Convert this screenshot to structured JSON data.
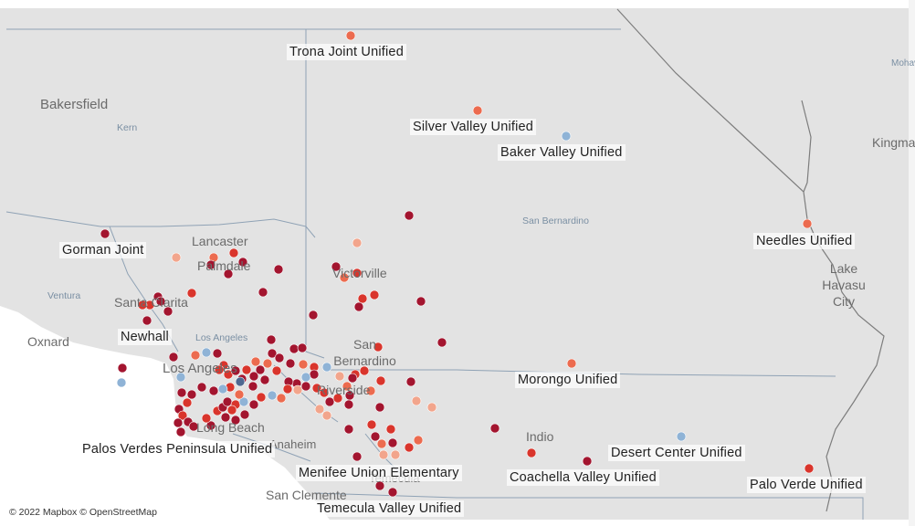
{
  "map": {
    "attribution": "© 2022 Mapbox © OpenStreetMap",
    "colors": {
      "land": "#e3e3e3",
      "water": "#ffffff",
      "county_border": "#8fa2b5",
      "state_border": "#7d7d7d",
      "dot_dark": "#a3152f",
      "dot_red": "#d9352c",
      "dot_orange": "#ec6b4f",
      "dot_light": "#f2a58c",
      "dot_blue": "#8fb3d6",
      "dot_navy": "#4d6891"
    },
    "district_labels": [
      "Trona Joint Unified",
      "Silver Valley Unified",
      "Baker Valley Unified",
      "Gorman Joint",
      "Needles Unified",
      "Newhall",
      "Morongo Unified",
      "Desert Center Unified",
      "Palos Verdes Peninsula Unified",
      "Coachella Valley Unified",
      "Menifee Union Elementary",
      "Palo Verde Unified",
      "Temecula Valley Unified"
    ],
    "city_labels": [
      "Bakersfield",
      "Lancaster",
      "Palmdale",
      "Victorville",
      "Santa Clarita",
      "Oxnard",
      "Los Angeles",
      "San Bernardino",
      "Riverside",
      "Long Beach",
      "Indio",
      "Lake Havasu City",
      "San Clemente",
      "Temecula",
      "Kingman",
      "Mohave",
      "Anaheim"
    ],
    "county_labels": [
      "Kern",
      "Ventura",
      "Los Angeles",
      "San Bernardino"
    ]
  }
}
